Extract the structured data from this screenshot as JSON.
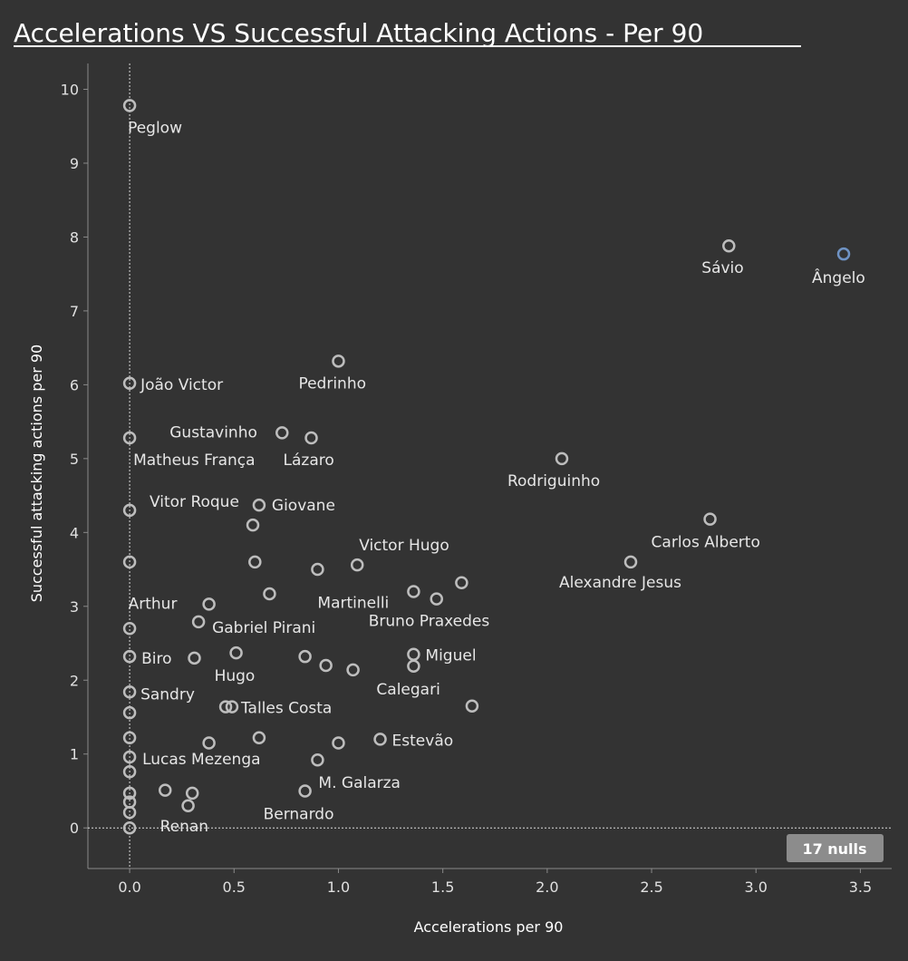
{
  "colors": {
    "background": "#333333",
    "point_stroke": "#bdbdbd",
    "highlight_stroke": "#6f93c4",
    "text": "#e6e6e6",
    "nulls_badge": "#8c8c8c"
  },
  "nulls_label": "17 nulls",
  "chart_data": {
    "type": "scatter",
    "title": "Accelerations VS Successful Attacking Actions - Per 90",
    "xlabel": "Accelerations per 90",
    "ylabel": "Successful attacking actions per 90",
    "xlim": [
      -0.2,
      3.65
    ],
    "ylim": [
      -0.55,
      10.35
    ],
    "x_ticks": [
      "0.0",
      "0.5",
      "1.0",
      "1.5",
      "2.0",
      "2.5",
      "3.0",
      "3.5"
    ],
    "y_ticks": [
      "0",
      "1",
      "2",
      "3",
      "4",
      "5",
      "6",
      "7",
      "8",
      "9",
      "10"
    ],
    "grid": false,
    "reference_lines": {
      "x": 0,
      "y": 0
    },
    "points": [
      {
        "x": 0.0,
        "y": 9.78,
        "label": "Peglow"
      },
      {
        "x": 2.87,
        "y": 7.88,
        "label": "Sávio"
      },
      {
        "x": 3.42,
        "y": 7.77,
        "label": "Ângelo",
        "highlight": true
      },
      {
        "x": 1.0,
        "y": 6.32,
        "label": "Pedrinho"
      },
      {
        "x": 0.0,
        "y": 6.02,
        "label": "João Victor"
      },
      {
        "x": 0.73,
        "y": 5.35,
        "label": "Gustavinho"
      },
      {
        "x": 0.87,
        "y": 5.28,
        "label": "Lázaro"
      },
      {
        "x": 0.0,
        "y": 5.28,
        "label": "Matheus França"
      },
      {
        "x": 2.07,
        "y": 5.0,
        "label": "Rodriguinho"
      },
      {
        "x": 0.0,
        "y": 4.3,
        "label": ""
      },
      {
        "x": 0.62,
        "y": 4.37,
        "label": "Giovane"
      },
      {
        "x": 0.59,
        "y": 4.1,
        "label": "Vitor Roque"
      },
      {
        "x": 2.78,
        "y": 4.18,
        "label": "Carlos Alberto"
      },
      {
        "x": 0.0,
        "y": 3.6,
        "label": ""
      },
      {
        "x": 0.6,
        "y": 3.6,
        "label": ""
      },
      {
        "x": 0.9,
        "y": 3.5,
        "label": ""
      },
      {
        "x": 1.09,
        "y": 3.56,
        "label": "Victor Hugo"
      },
      {
        "x": 2.4,
        "y": 3.6,
        "label": "Alexandre Jesus"
      },
      {
        "x": 1.59,
        "y": 3.32,
        "label": ""
      },
      {
        "x": 1.36,
        "y": 3.2,
        "label": "Martinelli"
      },
      {
        "x": 1.47,
        "y": 3.1,
        "label": "Bruno Praxedes"
      },
      {
        "x": 0.67,
        "y": 3.17,
        "label": ""
      },
      {
        "x": 0.38,
        "y": 3.03,
        "label": "Arthur"
      },
      {
        "x": 0.33,
        "y": 2.79,
        "label": "Gabriel Pirani"
      },
      {
        "x": 0.0,
        "y": 2.7,
        "label": ""
      },
      {
        "x": 0.0,
        "y": 2.32,
        "label": "Biro"
      },
      {
        "x": 0.31,
        "y": 2.3,
        "label": ""
      },
      {
        "x": 0.51,
        "y": 2.37,
        "label": "Hugo"
      },
      {
        "x": 0.84,
        "y": 2.32,
        "label": ""
      },
      {
        "x": 0.94,
        "y": 2.2,
        "label": ""
      },
      {
        "x": 1.07,
        "y": 2.14,
        "label": ""
      },
      {
        "x": 1.36,
        "y": 2.35,
        "label": "Miguel"
      },
      {
        "x": 1.36,
        "y": 2.19,
        "label": "Calegari"
      },
      {
        "x": 0.0,
        "y": 1.84,
        "label": "Sandry"
      },
      {
        "x": 0.46,
        "y": 1.64,
        "label": ""
      },
      {
        "x": 0.49,
        "y": 1.64,
        "label": "Talles Costa"
      },
      {
        "x": 1.64,
        "y": 1.65,
        "label": ""
      },
      {
        "x": 0.0,
        "y": 1.56,
        "label": ""
      },
      {
        "x": 0.0,
        "y": 1.22,
        "label": ""
      },
      {
        "x": 0.62,
        "y": 1.22,
        "label": ""
      },
      {
        "x": 0.38,
        "y": 1.15,
        "label": ""
      },
      {
        "x": 1.0,
        "y": 1.15,
        "label": ""
      },
      {
        "x": 1.2,
        "y": 1.2,
        "label": "Estevão"
      },
      {
        "x": 0.0,
        "y": 0.96,
        "label": "Lucas Mezenga"
      },
      {
        "x": 0.9,
        "y": 0.92,
        "label": "M. Galarza"
      },
      {
        "x": 0.0,
        "y": 0.76,
        "label": ""
      },
      {
        "x": 0.17,
        "y": 0.51,
        "label": ""
      },
      {
        "x": 0.3,
        "y": 0.47,
        "label": ""
      },
      {
        "x": 0.84,
        "y": 0.5,
        "label": "Bernardo"
      },
      {
        "x": 0.0,
        "y": 0.47,
        "label": ""
      },
      {
        "x": 0.0,
        "y": 0.35,
        "label": ""
      },
      {
        "x": 0.28,
        "y": 0.3,
        "label": "Renan"
      },
      {
        "x": 0.0,
        "y": 0.21,
        "label": ""
      },
      {
        "x": 0.0,
        "y": 0.0,
        "label": ""
      }
    ]
  }
}
